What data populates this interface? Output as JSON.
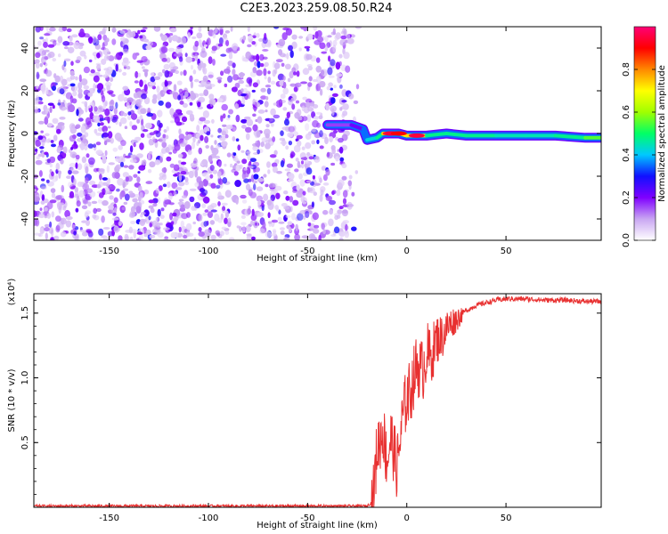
{
  "title": "C2E3.2023.259.08.50.R24",
  "chart_data": [
    {
      "type": "heatmap",
      "xlabel": "Height of straight line (km)",
      "ylabel": "Frequency (Hz)",
      "xlim": [
        -188,
        98
      ],
      "ylim": [
        -50,
        50
      ],
      "x_ticks": [
        -150,
        -100,
        -50,
        0,
        50
      ],
      "y_ticks": [
        -40,
        -20,
        0,
        20,
        40
      ],
      "colorbar": {
        "label": "Normalized spectral amplitude",
        "range": [
          0,
          1
        ],
        "ticks": [
          "0.0",
          "0.2",
          "0.4",
          "0.6",
          "0.8"
        ],
        "colors": [
          "#ffffff",
          "#c9a6f2",
          "#7f00ff",
          "#1010ff",
          "#00c8ff",
          "#00ff66",
          "#a0ff00",
          "#ffff00",
          "#ff8800",
          "#ff0000",
          "#ff0077"
        ]
      },
      "noise_region": {
        "x": [
          -188,
          -28
        ],
        "amplitude": 0.12
      },
      "ridge": [
        {
          "x": -40,
          "y": 4,
          "amplitude": 0.15
        },
        {
          "x": -28,
          "y": 4,
          "amplitude": 0.18
        },
        {
          "x": -22,
          "y": 2,
          "amplitude": 0.25
        },
        {
          "x": -20,
          "y": -3,
          "amplitude": 0.45
        },
        {
          "x": -15,
          "y": -2,
          "amplitude": 0.4
        },
        {
          "x": -12,
          "y": 0,
          "amplitude": 0.55
        },
        {
          "x": -8,
          "y": 0,
          "amplitude": 0.95
        },
        {
          "x": -4,
          "y": 0,
          "amplitude": 0.9
        },
        {
          "x": 0,
          "y": -1,
          "amplitude": 0.5
        },
        {
          "x": 5,
          "y": -1,
          "amplitude": 0.95
        },
        {
          "x": 10,
          "y": -1,
          "amplitude": 0.5
        },
        {
          "x": 20,
          "y": 0,
          "amplitude": 0.45
        },
        {
          "x": 30,
          "y": -1,
          "amplitude": 0.5
        },
        {
          "x": 45,
          "y": -1,
          "amplitude": 0.45
        },
        {
          "x": 60,
          "y": -1,
          "amplitude": 0.45
        },
        {
          "x": 75,
          "y": -1,
          "amplitude": 0.45
        },
        {
          "x": 90,
          "y": -2,
          "amplitude": 0.5
        },
        {
          "x": 98,
          "y": -2,
          "amplitude": 0.6
        }
      ]
    },
    {
      "type": "line",
      "xlabel": "Height of straight line (km)",
      "ylabel": "SNR (10 * v/v)",
      "y_multiplier": "(x10⁴)",
      "xlim": [
        -188,
        98
      ],
      "ylim": [
        0,
        1.65
      ],
      "x_ticks": [
        -150,
        -100,
        -50,
        0,
        50
      ],
      "y_ticks": [
        "0.5",
        "1.0",
        "1.5"
      ],
      "line_color": "#e83030",
      "x": [
        -188,
        -150,
        -100,
        -50,
        -20,
        -17,
        -15,
        -12,
        -10,
        -8,
        -5,
        -2,
        0,
        2,
        5,
        8,
        10,
        12,
        15,
        18,
        20,
        22,
        25,
        28,
        30,
        35,
        40,
        45,
        50,
        60,
        70,
        80,
        90,
        98
      ],
      "y": [
        0.01,
        0.01,
        0.01,
        0.01,
        0.01,
        0.05,
        0.45,
        0.6,
        0.35,
        0.55,
        0.3,
        0.7,
        0.85,
        0.9,
        1.1,
        1.05,
        1.2,
        1.15,
        1.3,
        1.32,
        1.38,
        1.42,
        1.45,
        1.5,
        1.52,
        1.56,
        1.58,
        1.6,
        1.61,
        1.61,
        1.6,
        1.6,
        1.59,
        1.59
      ]
    }
  ]
}
